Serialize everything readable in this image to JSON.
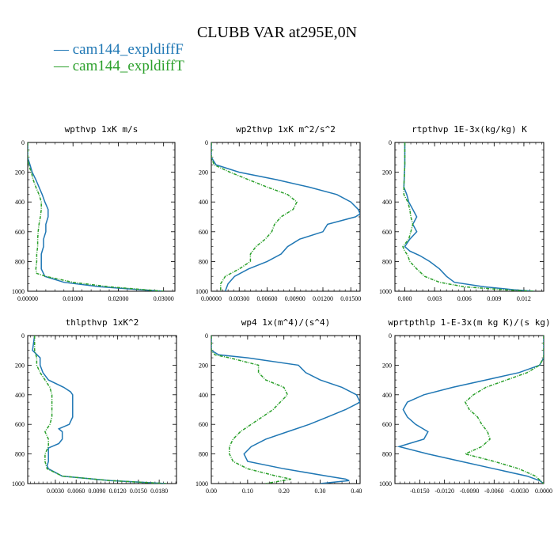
{
  "title": "CLUBB VAR at295E,0N",
  "legend": [
    {
      "label": "— cam144_expldiffF",
      "color": "#1f77b4"
    },
    {
      "label": "— cam144_expldiffT",
      "color": "#2ca02c"
    }
  ],
  "chart_data": [
    {
      "type": "line",
      "title": "wpthvp  1xK m/s",
      "xlim": [
        0,
        0.0325
      ],
      "ylim": [
        1000,
        0
      ],
      "xticks": [
        0,
        0.01,
        0.02,
        0.03
      ],
      "xtick_labels": [
        "0.00000",
        "0.01000",
        "0.02000",
        "0.03000"
      ],
      "yticks": [
        0,
        200,
        400,
        600,
        800,
        1000
      ],
      "ytick_labels": [
        "0",
        "200",
        "400",
        "600",
        "800",
        "1000"
      ],
      "series": [
        {
          "color": "#1f77b4",
          "y": [
            0,
            100,
            150,
            200,
            250,
            300,
            350,
            400,
            450,
            500,
            550,
            600,
            650,
            700,
            750,
            800,
            850,
            900,
            940,
            970,
            990,
            1000
          ],
          "x": [
            0,
            0,
            0.0005,
            0.001,
            0.0018,
            0.0025,
            0.0032,
            0.0038,
            0.0045,
            0.0045,
            0.004,
            0.004,
            0.0035,
            0.0035,
            0.003,
            0.003,
            0.003,
            0.0038,
            0.008,
            0.016,
            0.025,
            0.03
          ]
        },
        {
          "color": "#2ca02c",
          "y": [
            0,
            100,
            150,
            200,
            250,
            300,
            350,
            400,
            450,
            500,
            550,
            600,
            650,
            700,
            750,
            800,
            850,
            880,
            900,
            940,
            970,
            990,
            1000
          ],
          "x": [
            0,
            0,
            0.0002,
            0.0008,
            0.0012,
            0.0018,
            0.0025,
            0.003,
            0.003,
            0.0028,
            0.0025,
            0.0023,
            0.0022,
            0.0022,
            0.002,
            0.002,
            0.0018,
            0.002,
            0.004,
            0.01,
            0.018,
            0.026,
            0.03
          ]
        }
      ]
    },
    {
      "type": "line",
      "title": "wp2thvp  1xK m^2/s^2",
      "xlim": [
        0,
        0.016
      ],
      "ylim": [
        1000,
        0
      ],
      "xticks": [
        0,
        0.003,
        0.006,
        0.009,
        0.012,
        0.015
      ],
      "xtick_labels": [
        "0.00000",
        "0.00300",
        "0.00600",
        "0.00900",
        "0.01200",
        "0.01500"
      ],
      "yticks": [
        0,
        200,
        400,
        600,
        800,
        1000
      ],
      "ytick_labels": [
        "0",
        "200",
        "400",
        "600",
        "800",
        "1000"
      ],
      "series": [
        {
          "color": "#1f77b4",
          "y": [
            0,
            100,
            150,
            200,
            250,
            300,
            350,
            400,
            450,
            480,
            500,
            550,
            600,
            650,
            700,
            750,
            800,
            850,
            900,
            950,
            1000
          ],
          "x": [
            0,
            0,
            0.0005,
            0.003,
            0.007,
            0.0105,
            0.0135,
            0.015,
            0.0158,
            0.016,
            0.0155,
            0.0125,
            0.012,
            0.0095,
            0.0082,
            0.0075,
            0.006,
            0.004,
            0.0025,
            0.0018,
            0.0015
          ]
        },
        {
          "color": "#2ca02c",
          "y": [
            0,
            100,
            150,
            200,
            250,
            300,
            350,
            400,
            450,
            500,
            550,
            600,
            650,
            700,
            750,
            800,
            850,
            900,
            950,
            1000
          ],
          "x": [
            0,
            0,
            0.0003,
            0.002,
            0.004,
            0.006,
            0.0082,
            0.0092,
            0.0088,
            0.0075,
            0.0068,
            0.0065,
            0.0058,
            0.0048,
            0.0042,
            0.0042,
            0.003,
            0.0015,
            0.001,
            0.001
          ]
        }
      ]
    },
    {
      "type": "line",
      "title": "rtpthvp  1E-3x(kg/kg) K",
      "xlim": [
        -0.001,
        0.014
      ],
      "ylim": [
        1000,
        0
      ],
      "xticks": [
        0,
        0.003,
        0.006,
        0.009,
        0.012
      ],
      "xtick_labels": [
        "0.000",
        "0.003",
        "0.006",
        "0.009",
        "0.012"
      ],
      "yticks": [
        0,
        200,
        400,
        600,
        800,
        1000
      ],
      "ytick_labels": [
        "0",
        "200",
        "400",
        "600",
        "800",
        "1000"
      ],
      "series": [
        {
          "color": "#1f77b4",
          "y": [
            0,
            150,
            300,
            350,
            400,
            450,
            500,
            550,
            600,
            650,
            700,
            730,
            760,
            800,
            850,
            900,
            940,
            970,
            990,
            1000
          ],
          "x": [
            0,
            0,
            -0.0001,
            0.0002,
            0.0004,
            0.0008,
            0.0012,
            0.0008,
            0.0012,
            0.0005,
            0,
            0.0005,
            0.0015,
            0.0025,
            0.0035,
            0.0042,
            0.005,
            0.008,
            0.011,
            0.013
          ]
        },
        {
          "color": "#2ca02c",
          "y": [
            0,
            150,
            300,
            350,
            400,
            450,
            500,
            550,
            600,
            650,
            700,
            730,
            760,
            800,
            850,
            900,
            940,
            970,
            990,
            1000
          ],
          "x": [
            0,
            0,
            -0.0001,
            -0.0001,
            0.0003,
            0.0005,
            0.0006,
            0.0008,
            0.0006,
            0.0004,
            -0.0002,
            0,
            0.0003,
            0.0005,
            0.0012,
            0.002,
            0.0035,
            0.006,
            0.01,
            0.013
          ]
        }
      ]
    },
    {
      "type": "line",
      "title": "thlpthvp  1xK^2",
      "xlim": [
        -0.001,
        0.0205
      ],
      "ylim": [
        1000,
        0
      ],
      "xticks": [
        0.003,
        0.006,
        0.009,
        0.012,
        0.015,
        0.018
      ],
      "xtick_labels": [
        "0.0030",
        "0.0060",
        "0.0090",
        "0.0120",
        "0.0150",
        "0.0180"
      ],
      "yticks": [
        0,
        200,
        400,
        600,
        800,
        1000
      ],
      "ytick_labels": [
        "0",
        "200",
        "400",
        "600",
        "800",
        "1000"
      ],
      "series": [
        {
          "color": "#1f77b4",
          "y": [
            0,
            100,
            150,
            200,
            250,
            300,
            350,
            380,
            400,
            450,
            500,
            550,
            600,
            630,
            650,
            700,
            730,
            760,
            800,
            850,
            880,
            900,
            950,
            980,
            1000
          ],
          "x": [
            0,
            -0.0003,
            0.0008,
            0.0008,
            0.0012,
            0.002,
            0.0042,
            0.0052,
            0.0055,
            0.0055,
            0.0055,
            0.0055,
            0.005,
            0.0035,
            0.004,
            0.004,
            0.0035,
            0.002,
            0.002,
            0.002,
            0.0018,
            0.002,
            0.004,
            0.011,
            0.019
          ]
        },
        {
          "color": "#2ca02c",
          "y": [
            0,
            100,
            150,
            200,
            250,
            300,
            350,
            400,
            450,
            500,
            550,
            600,
            650,
            700,
            750,
            800,
            850,
            900,
            950,
            980,
            1000
          ],
          "x": [
            0,
            0,
            0.0003,
            0.0003,
            0.0008,
            0.0015,
            0.0022,
            0.0025,
            0.0025,
            0.0025,
            0.0025,
            0.0022,
            0.0015,
            0.002,
            0.002,
            0.0015,
            0.0015,
            0.0018,
            0.004,
            0.011,
            0.019
          ]
        }
      ]
    },
    {
      "type": "line",
      "title": "wp4  1x(m^4)/(s^4)",
      "xlim": [
        0,
        0.41
      ],
      "ylim": [
        1000,
        0
      ],
      "xticks": [
        0,
        0.1,
        0.2,
        0.3,
        0.4
      ],
      "xtick_labels": [
        "0.00",
        "0.10",
        "0.20",
        "0.30",
        "0.40"
      ],
      "yticks": [
        0,
        200,
        400,
        600,
        800,
        1000
      ],
      "ytick_labels": [
        "0",
        "200",
        "400",
        "600",
        "800",
        "1000"
      ],
      "series": [
        {
          "color": "#1f77b4",
          "y": [
            0,
            100,
            130,
            150,
            200,
            250,
            300,
            350,
            400,
            450,
            500,
            550,
            600,
            650,
            700,
            750,
            800,
            850,
            900,
            950,
            970,
            980,
            1000
          ],
          "x": [
            0,
            0,
            0.02,
            0.1,
            0.24,
            0.26,
            0.3,
            0.36,
            0.4,
            0.41,
            0.37,
            0.32,
            0.27,
            0.21,
            0.15,
            0.11,
            0.09,
            0.1,
            0.2,
            0.32,
            0.37,
            0.38,
            0.3
          ]
        },
        {
          "color": "#2ca02c",
          "y": [
            0,
            100,
            130,
            150,
            200,
            250,
            300,
            350,
            400,
            450,
            500,
            550,
            600,
            650,
            700,
            750,
            800,
            850,
            900,
            950,
            970,
            1000
          ],
          "x": [
            0,
            0,
            0.01,
            0.05,
            0.13,
            0.13,
            0.15,
            0.2,
            0.21,
            0.19,
            0.17,
            0.14,
            0.11,
            0.08,
            0.06,
            0.05,
            0.05,
            0.06,
            0.1,
            0.18,
            0.22,
            0.15
          ]
        }
      ]
    },
    {
      "type": "line",
      "title": "wprtpthlp  1-E-3x(m kg K)/(s kg)",
      "xlim": [
        -0.018,
        0.0
      ],
      "ylim": [
        1000,
        0
      ],
      "xticks": [
        -0.015,
        -0.012,
        -0.009,
        -0.006,
        -0.003,
        0
      ],
      "xtick_labels": [
        "-0.0150",
        "-0.0120",
        "-0.0090",
        "-0.0060",
        "-0.0030",
        "0.0000"
      ],
      "yticks": [
        0,
        200,
        400,
        600,
        800,
        1000
      ],
      "ytick_labels": [
        "0",
        "200",
        "400",
        "600",
        "800",
        "1000"
      ],
      "series": [
        {
          "color": "#1f77b4",
          "y": [
            0,
            150,
            200,
            250,
            300,
            350,
            400,
            450,
            500,
            550,
            600,
            650,
            700,
            750,
            800,
            850,
            900,
            950,
            980,
            1000
          ],
          "x": [
            0,
            0,
            -0.0005,
            -0.003,
            -0.007,
            -0.011,
            -0.0145,
            -0.0165,
            -0.017,
            -0.0165,
            -0.0155,
            -0.014,
            -0.0145,
            -0.0175,
            -0.014,
            -0.01,
            -0.006,
            -0.002,
            -0.0005,
            0
          ]
        },
        {
          "color": "#2ca02c",
          "y": [
            0,
            150,
            200,
            250,
            300,
            350,
            400,
            450,
            500,
            550,
            600,
            650,
            700,
            750,
            800,
            850,
            900,
            950,
            1000
          ],
          "x": [
            0,
            0,
            -0.0005,
            -0.002,
            -0.0045,
            -0.007,
            -0.0085,
            -0.0095,
            -0.009,
            -0.008,
            -0.0075,
            -0.0068,
            -0.0065,
            -0.0075,
            -0.0095,
            -0.006,
            -0.003,
            -0.001,
            0
          ]
        }
      ]
    }
  ]
}
